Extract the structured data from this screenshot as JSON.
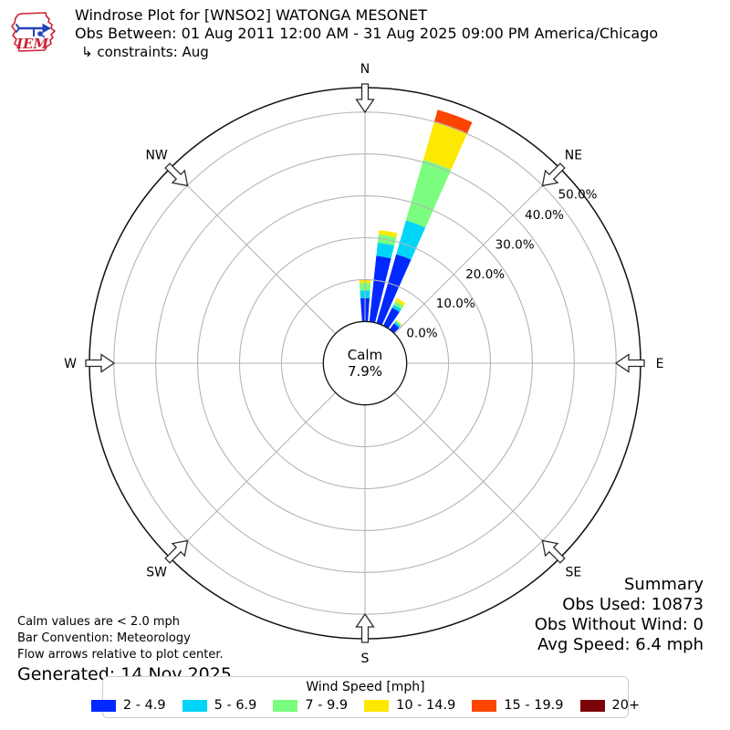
{
  "header": {
    "logo_text": "IEM",
    "title": "Windrose Plot for [WNSO2] WATONGA MESONET",
    "subtitle": "Obs Between: 01 Aug 2011 12:00 AM - 31 Aug 2025 09:00 PM America/Chicago",
    "constraints": "↳ constraints: Aug"
  },
  "summary": {
    "heading": "Summary",
    "obs_used": "Obs Used: 10873",
    "obs_without_wind": "Obs Without Wind: 0",
    "avg_speed": "Avg Speed: 6.4 mph"
  },
  "annotations": {
    "calm_note": "Calm values are < 2.0 mph",
    "bar_convention": "Bar Convention: Meteorology",
    "flow_note": "Flow arrows relative to plot center.",
    "generated": "Generated: 14 Nov 2025"
  },
  "legend": {
    "title": "Wind Speed [mph]"
  },
  "colors": {
    "grid": "#b5b5b5",
    "axis": "#111111",
    "arrow_stroke": "#2b2b2b",
    "logo_red": "#cc2233",
    "logo_blue": "#2244bb"
  },
  "chart_data": {
    "type": "windrose",
    "units": "mph",
    "title": "Windrose Plot for [WNSO2] WATONGA MESONET",
    "calm": {
      "label": "Calm",
      "value": "7.9%"
    },
    "ring_values": [
      0,
      10,
      20,
      30,
      40,
      50
    ],
    "ring_ticks": [
      "0.0%",
      "10.0%",
      "20.0%",
      "30.0%",
      "40.0%",
      "50.0%"
    ],
    "rmax_display_pct": 55.8,
    "grid_on": true,
    "compass": [
      "N",
      "NE",
      "E",
      "SE",
      "S",
      "SW",
      "W",
      "NW"
    ],
    "bar_width_deg": 8,
    "bins": [
      {
        "label": "2 - 4.9",
        "color": "#0128ff"
      },
      {
        "label": "5 - 6.9",
        "color": "#00d5f7"
      },
      {
        "label": "7 - 9.9",
        "color": "#7bfd80"
      },
      {
        "label": "10 - 14.9",
        "color": "#fde801"
      },
      {
        "label": "15 - 19.9",
        "color": "#fd4502"
      },
      {
        "label": "20+",
        "color": "#7e0308"
      }
    ],
    "series": [
      {
        "direction_deg": 0,
        "values_pct": [
          5.6,
          1.8,
          1.8,
          0.9,
          0,
          0
        ],
        "total_pct": 10.1
      },
      {
        "direction_deg": 10,
        "values_pct": [
          15.8,
          3.2,
          2.0,
          1.0,
          0,
          0
        ],
        "total_pct": 22.0
      },
      {
        "direction_deg": 20,
        "values_pct": [
          17.1,
          8.4,
          15.1,
          9.5,
          2.9,
          0
        ],
        "total_pct": 53.0
      },
      {
        "direction_deg": 30,
        "values_pct": [
          4.8,
          0.8,
          0.9,
          0.8,
          0,
          0
        ],
        "total_pct": 7.3
      },
      {
        "direction_deg": 40,
        "values_pct": [
          1.8,
          0.5,
          0.3,
          0.2,
          0,
          0
        ],
        "total_pct": 2.8
      }
    ]
  }
}
